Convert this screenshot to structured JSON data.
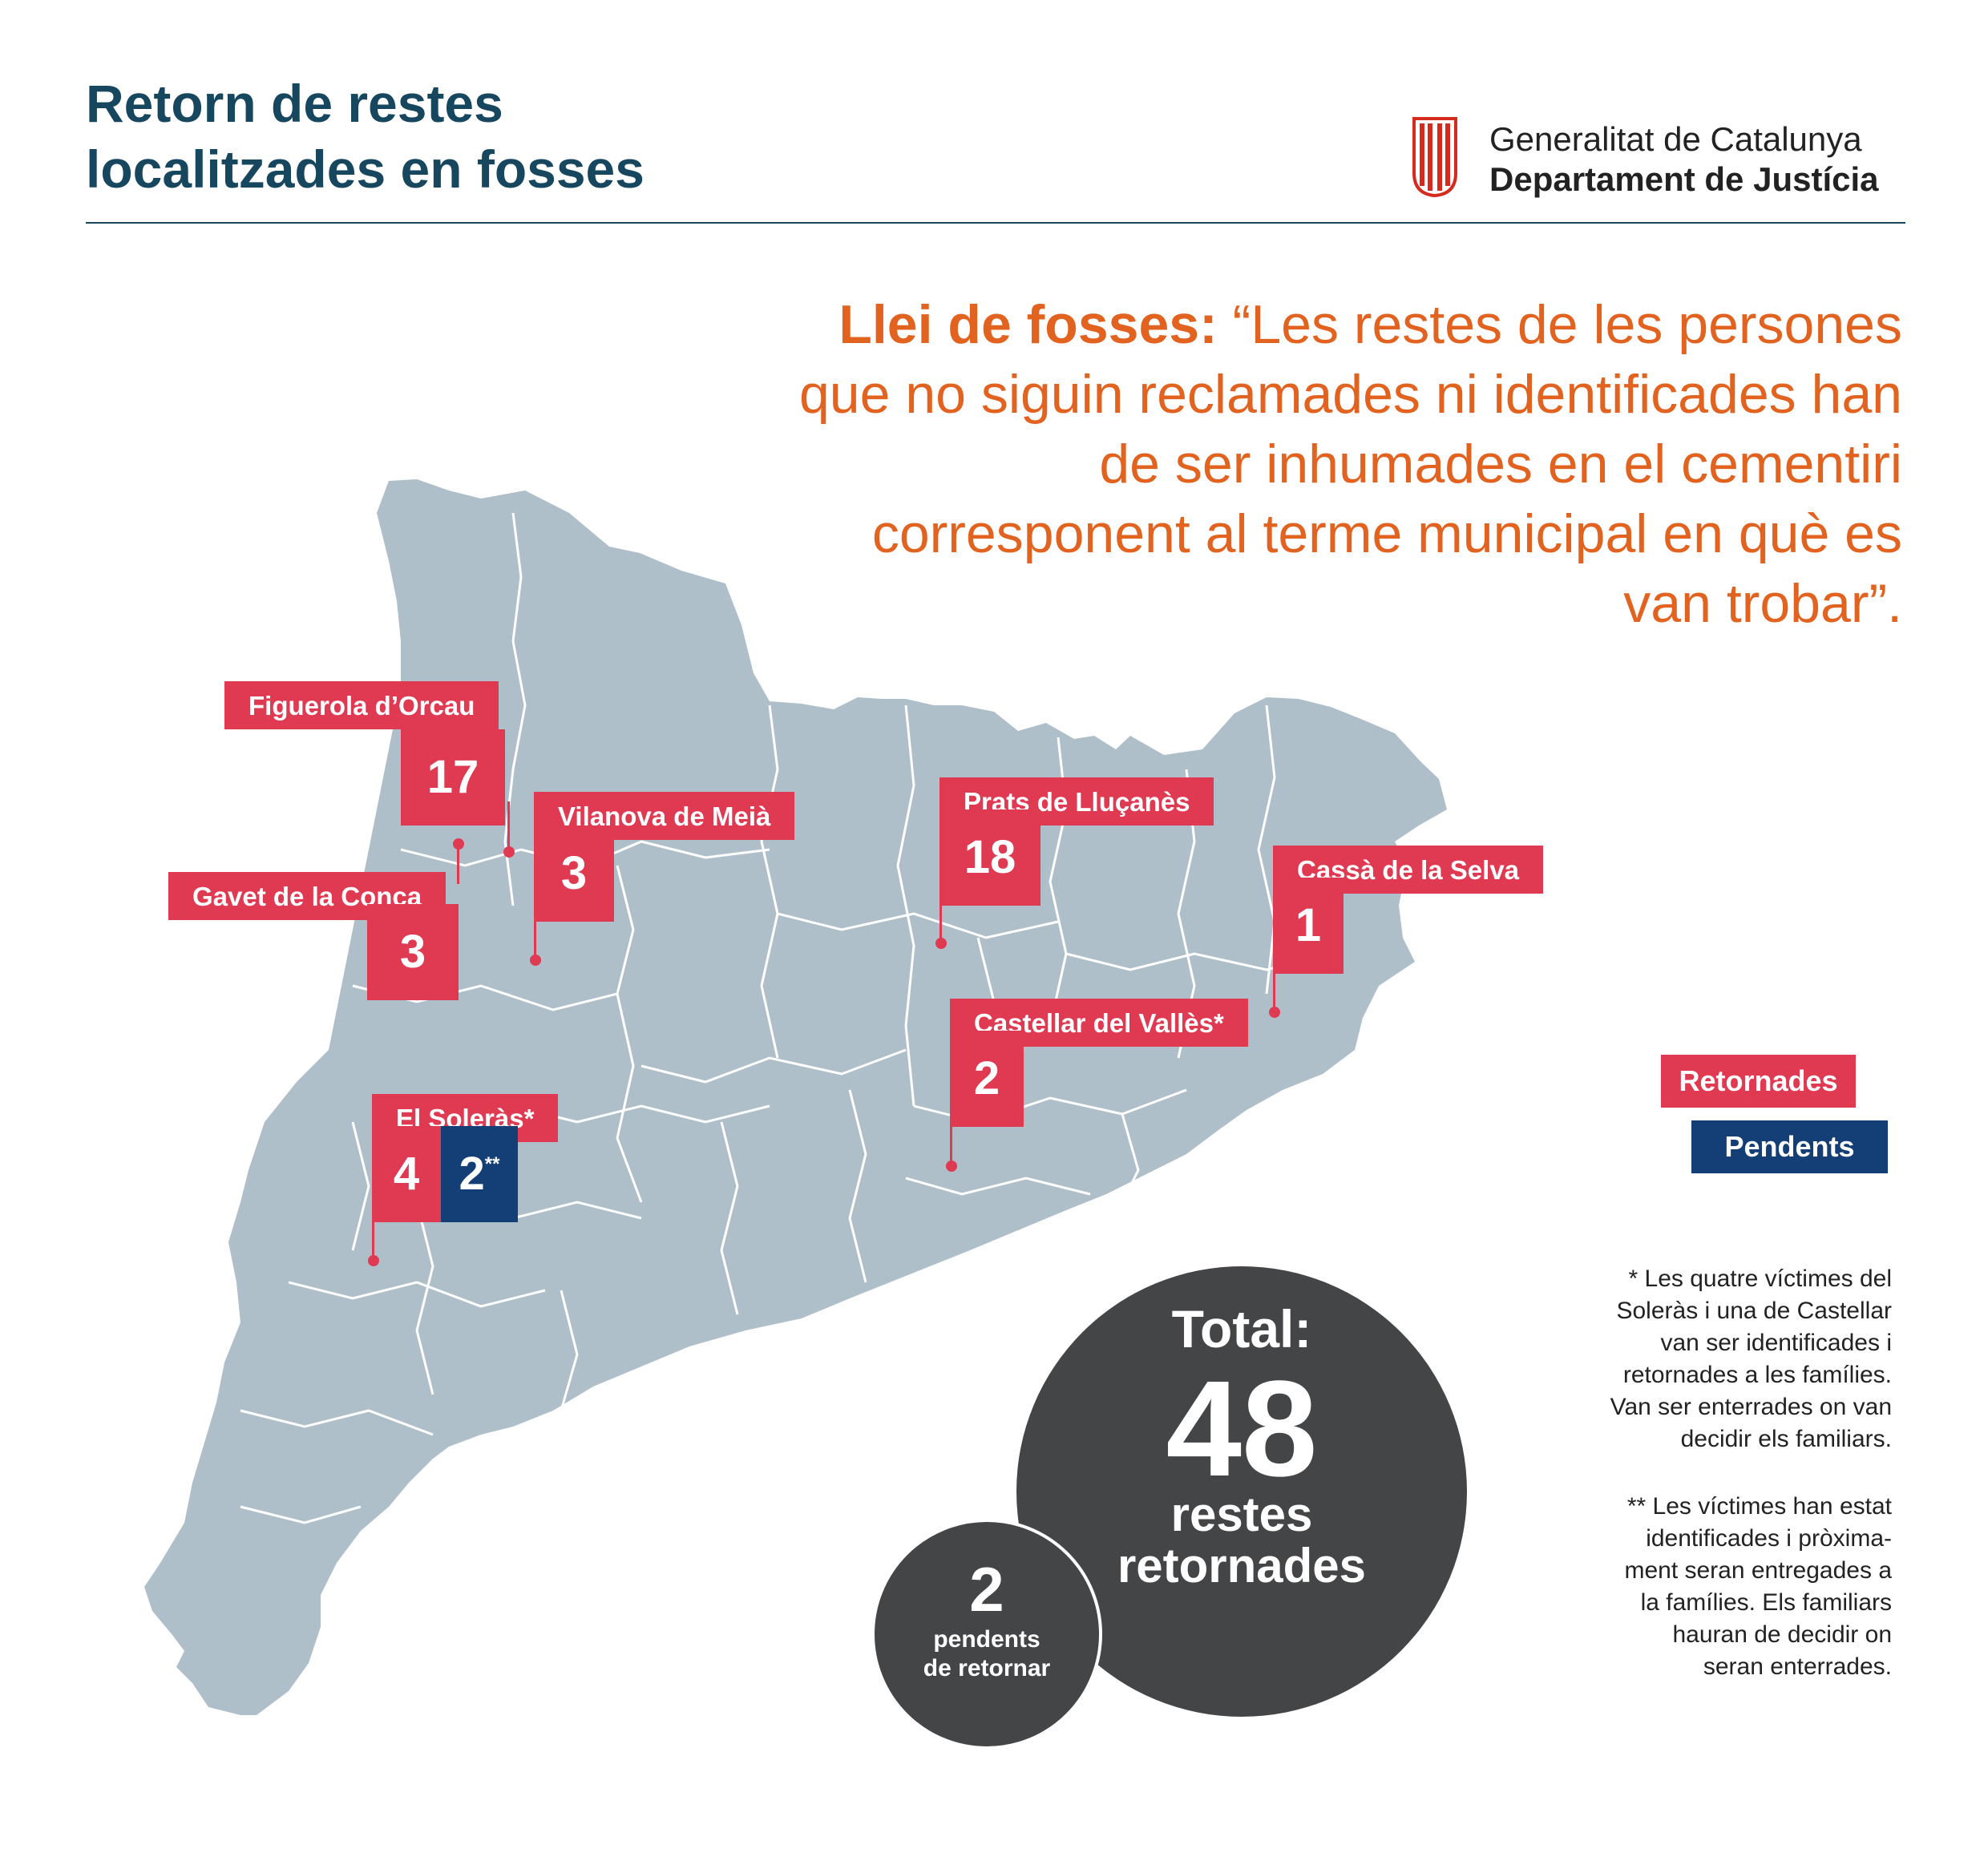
{
  "header": {
    "title_line1": "Retorn de restes",
    "title_line2": "localitzades en fosses",
    "gov_name": "Generalitat de Catalunya",
    "department": "Departament de Justícia"
  },
  "quote": {
    "lead": "Llei de fosses:",
    "text": "“Les restes de les persones que no siguin reclamades ni identificades han de ser inhumades en el cementiri corresponent al terme municipal en què es van trobar”."
  },
  "locations": [
    {
      "name": "Figuerola d’Orcau",
      "retornades": "17"
    },
    {
      "name": "Vilanova de Meià",
      "retornades": "3"
    },
    {
      "name": "Gavet de la Conca",
      "retornades": "3"
    },
    {
      "name": "Prats de Lluçanès",
      "retornades": "18"
    },
    {
      "name": "Cassà de la Selva",
      "retornades": "1"
    },
    {
      "name": "Castellar del Vallès*",
      "retornades": "2"
    },
    {
      "name": "El Soleràs*",
      "retornades": "4",
      "pendents": "2",
      "pendents_mark": "**"
    }
  ],
  "legend": {
    "returned": "Retornades",
    "pending": "Pendents"
  },
  "colors": {
    "returned": "#e03a52",
    "pending": "#143e76",
    "map_fill": "#aebfca",
    "title": "#17475f",
    "quote": "#e2631f",
    "circle": "#444547"
  },
  "totals": {
    "label": "Total:",
    "value": "48",
    "unit": "restes\nretornades",
    "pending_value": "2",
    "pending_unit": "pendents\nde retornar"
  },
  "notes": {
    "note1": "* Les quatre víctimes del\nSoleràs i una de Castellar\nvan ser identificades i\nretornades a les famílies.\nVan ser enterrades on van\ndecidir els familiars.",
    "note2": "** Les víctimes han estat\nidentificades i pròxima-\nment seran entregades a\nla famílies. Els familiars\nhauran de decidir on\nseran enterrades."
  }
}
